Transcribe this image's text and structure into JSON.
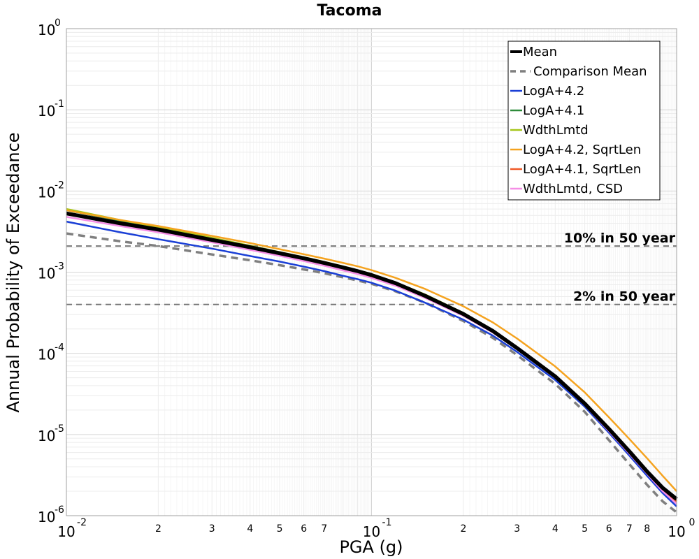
{
  "chart_data": {
    "type": "line",
    "title": "Tacoma",
    "xlabel": "PGA (g)",
    "ylabel": "Annual Probability of Exceedance",
    "xscale": "log",
    "yscale": "log",
    "xlim": [
      0.01,
      1
    ],
    "ylim": [
      1e-06,
      1
    ],
    "grid": true,
    "legend_position": "top-right",
    "x_major_ticks": [
      {
        "value": 0.01,
        "base": "10",
        "exp": "-2"
      },
      {
        "value": 0.1,
        "base": "10",
        "exp": "-1"
      },
      {
        "value": 1,
        "base": "10",
        "exp": "0"
      }
    ],
    "y_major_ticks": [
      {
        "value": 1,
        "base": "10",
        "exp": "0"
      },
      {
        "value": 0.1,
        "base": "10",
        "exp": "-1"
      },
      {
        "value": 0.01,
        "base": "10",
        "exp": "-2"
      },
      {
        "value": 0.001,
        "base": "10",
        "exp": "-3"
      },
      {
        "value": 0.0001,
        "base": "10",
        "exp": "-4"
      },
      {
        "value": 1e-05,
        "base": "10",
        "exp": "-5"
      },
      {
        "value": 1e-06,
        "base": "10",
        "exp": "-6"
      }
    ],
    "x_minor_labels": [
      "2",
      "3",
      "4",
      "5",
      "6",
      "7",
      "2",
      "3",
      "4",
      "5",
      "6",
      "7",
      "8"
    ],
    "x_minor_label_values": [
      0.02,
      0.03,
      0.04,
      0.05,
      0.06,
      0.07,
      0.2,
      0.3,
      0.4,
      0.5,
      0.6,
      0.7,
      0.8
    ],
    "reference_lines": [
      {
        "label": "10% in 50 year",
        "y": 0.0021
      },
      {
        "label": "2% in 50 year",
        "y": 0.0004
      }
    ],
    "x": [
      0.01,
      0.015,
      0.02,
      0.03,
      0.04,
      0.05,
      0.06,
      0.07,
      0.08,
      0.09,
      0.1,
      0.12,
      0.15,
      0.2,
      0.25,
      0.3,
      0.4,
      0.5,
      0.6,
      0.7,
      0.8,
      0.9,
      1.0
    ],
    "series": [
      {
        "name": "Comparison Mean",
        "color": "#7f7f7f",
        "dash": true,
        "width": 3.5,
        "values": [
          0.003,
          0.0024,
          0.0021,
          0.00165,
          0.0014,
          0.00122,
          0.00108,
          0.00097,
          0.00087,
          0.00079,
          0.00072,
          0.00058,
          0.00042,
          0.00025,
          0.000155,
          9.5e-05,
          4.2e-05,
          1.9e-05,
          8.5e-06,
          4.3e-06,
          2.4e-06,
          1.5e-06,
          1.1e-06
        ]
      },
      {
        "name": "LogA+4.2",
        "color": "#1a3fd6",
        "width": 2.5,
        "values": [
          0.0042,
          0.0031,
          0.00255,
          0.00195,
          0.00158,
          0.00135,
          0.00117,
          0.00103,
          0.00091,
          0.00082,
          0.00074,
          0.00059,
          0.00042,
          0.00026,
          0.000165,
          0.000104,
          4.7e-05,
          2.2e-05,
          1.05e-05,
          5.5e-06,
          3.1e-06,
          1.9e-06,
          1.3e-06
        ]
      },
      {
        "name": "LogA+4.1",
        "color": "#2e8b3a",
        "width": 2.5,
        "values": [
          0.0058,
          0.0043,
          0.0035,
          0.0026,
          0.0021,
          0.00175,
          0.00152,
          0.00133,
          0.00118,
          0.00105,
          0.00094,
          0.00074,
          0.00052,
          0.00031,
          0.00019,
          0.000118,
          5.2e-05,
          2.4e-05,
          1.15e-05,
          6e-06,
          3.4e-06,
          2.1e-06,
          1.5e-06
        ]
      },
      {
        "name": "WdthLmtd",
        "color": "#a6c61a",
        "width": 2.5,
        "values": [
          0.006,
          0.0044,
          0.0036,
          0.00265,
          0.00212,
          0.00177,
          0.00153,
          0.00134,
          0.00119,
          0.00106,
          0.00095,
          0.00075,
          0.00053,
          0.000315,
          0.000193,
          0.00012,
          5.3e-05,
          2.45e-05,
          1.17e-05,
          6.1e-06,
          3.5e-06,
          2.1e-06,
          1.5e-06
        ]
      },
      {
        "name": "LogA+4.2, SqrtLen",
        "color": "#f5a31f",
        "width": 2.5,
        "values": [
          0.0058,
          0.0044,
          0.0037,
          0.0028,
          0.00228,
          0.00192,
          0.00166,
          0.00147,
          0.00131,
          0.00118,
          0.00106,
          0.00085,
          0.00062,
          0.00038,
          0.00024,
          0.000152,
          6.9e-05,
          3.3e-05,
          1.63e-05,
          8.8e-06,
          5.1e-06,
          3.1e-06,
          2e-06
        ]
      },
      {
        "name": "LogA+4.1, SqrtLen",
        "color": "#f05a28",
        "width": 2.5,
        "values": [
          0.0054,
          0.0041,
          0.0034,
          0.00255,
          0.00206,
          0.00173,
          0.0015,
          0.00131,
          0.00116,
          0.00104,
          0.00093,
          0.00074,
          0.00052,
          0.00031,
          0.00019,
          0.000118,
          5.2e-05,
          2.4e-05,
          1.15e-05,
          6e-06,
          3.4e-06,
          2.1e-06,
          1.5e-06
        ]
      },
      {
        "name": "WdthLmtd, CSD",
        "color": "#f58ee6",
        "width": 2.5,
        "values": [
          0.0048,
          0.0037,
          0.0031,
          0.00233,
          0.00188,
          0.00159,
          0.00137,
          0.0012,
          0.00106,
          0.00095,
          0.00085,
          0.00068,
          0.00048,
          0.00029,
          0.00018,
          0.000112,
          5e-05,
          2.3e-05,
          1.1e-05,
          5.8e-06,
          3.3e-06,
          2e-06,
          1.4e-06
        ]
      },
      {
        "name": "Mean",
        "color": "#000000",
        "width": 5.5,
        "values": [
          0.0053,
          0.004,
          0.00335,
          0.0025,
          0.00203,
          0.00171,
          0.00148,
          0.0013,
          0.00115,
          0.00103,
          0.00092,
          0.00073,
          0.00051,
          0.000305,
          0.000188,
          0.000116,
          5.2e-05,
          2.4e-05,
          1.17e-05,
          6.2e-06,
          3.5e-06,
          2.2e-06,
          1.6e-06
        ]
      }
    ],
    "legend_order": [
      "Mean",
      "Comparison Mean",
      "LogA+4.2",
      "LogA+4.1",
      "WdthLmtd",
      "LogA+4.2, SqrtLen",
      "LogA+4.1, SqrtLen",
      "WdthLmtd, CSD"
    ]
  }
}
